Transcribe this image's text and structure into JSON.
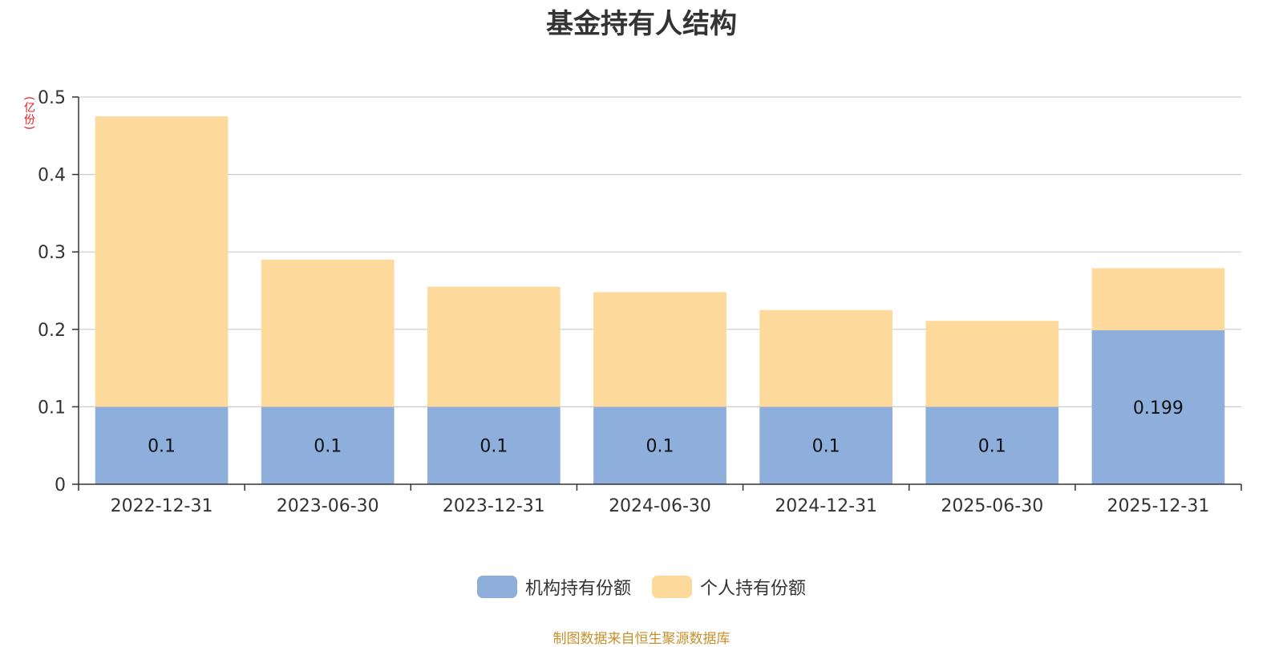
{
  "chart_data": {
    "type": "bar",
    "stacked": true,
    "title": "基金持有人结构",
    "unit": "(亿份)",
    "categories": [
      "2022-12-31",
      "2023-06-30",
      "2023-12-31",
      "2024-06-30",
      "2024-12-31",
      "2025-06-30",
      "2025-12-31"
    ],
    "series": [
      {
        "name": "机构持有份额",
        "color": "#8eaedb",
        "values": [
          0.1,
          0.1,
          0.1,
          0.1,
          0.1,
          0.1,
          0.199
        ],
        "labels": [
          "0.1",
          "0.1",
          "0.1",
          "0.1",
          "0.1",
          "0.1",
          "0.199"
        ]
      },
      {
        "name": "个人持有份额",
        "color": "#fdd99b",
        "values": [
          0.375,
          0.19,
          0.155,
          0.148,
          0.125,
          0.111,
          0.08
        ]
      }
    ],
    "y_ticks": [
      "0",
      "0.1",
      "0.2",
      "0.3",
      "0.4",
      "0.5"
    ],
    "ylim": [
      0,
      0.5
    ],
    "grid": true,
    "legend_position": "bottom"
  },
  "footer": {
    "source": "制图数据来自恒生聚源数据库"
  },
  "colors": {
    "unit_label": "#e31a1c",
    "source_note": "#c8902a",
    "grid": "#cccccc",
    "axis": "#333333"
  }
}
